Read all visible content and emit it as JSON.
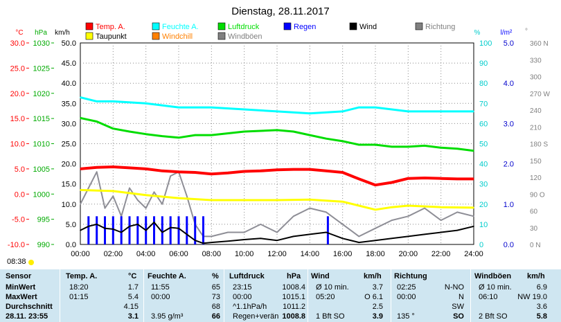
{
  "title": "Dienstag, 28.11.2017",
  "legend": [
    {
      "label": "Temp. A.",
      "color": "#ff0000"
    },
    {
      "label": "Feuchte A.",
      "color": "#00ffff"
    },
    {
      "label": "Luftdruck",
      "color": "#00dd00"
    },
    {
      "label": "Regen",
      "color": "#0000ff"
    },
    {
      "label": "Wind",
      "color": "#000000"
    },
    {
      "label": "Richtung",
      "color": "#808080"
    },
    {
      "label": "Taupunkt",
      "color": "#ffff00"
    },
    {
      "label": "Windchill",
      "color": "#ff8000"
    },
    {
      "label": "Windböen",
      "color": "#808080"
    }
  ],
  "axes": {
    "unit_temp": "°C",
    "unit_press": "hPa",
    "unit_wind": "km/h",
    "unit_hum": "%",
    "unit_rain": "l/m²",
    "unit_dir": "°",
    "temp_ticks": [
      "30.0",
      "25.0",
      "20.0",
      "15.0",
      "10.0",
      "5.0",
      "0.0",
      "-5.0",
      "-10.0"
    ],
    "press_ticks": [
      "1030",
      "1025",
      "1020",
      "1015",
      "1010",
      "1005",
      "1000",
      "995",
      "990"
    ],
    "wind_ticks": [
      "50.0",
      "45.0",
      "40.0",
      "35.0",
      "30.0",
      "25.0",
      "20.0",
      "15.0",
      "10.0",
      "5.0",
      "0.0"
    ],
    "hum_ticks": [
      "100",
      "90",
      "80",
      "70",
      "60",
      "50",
      "40",
      "30",
      "20",
      "10",
      "0"
    ],
    "rain_ticks": [
      "5.0",
      "4.0",
      "3.0",
      "2.0",
      "1.0",
      "0.0"
    ],
    "dir_ticks": [
      "360 N",
      "330",
      "300",
      "270 W",
      "240",
      "210",
      "180 S",
      "150",
      "120",
      "90 O",
      "60",
      "30",
      "0 N"
    ],
    "time_ticks": [
      "00:00",
      "02:00",
      "04:00",
      "06:00",
      "08:00",
      "10:00",
      "12:00",
      "14:00",
      "16:00",
      "18:00",
      "20:00",
      "22:00",
      "24:00"
    ]
  },
  "footer": {
    "sunrise": "08:38"
  },
  "chart_data": {
    "type": "line",
    "title": "Dienstag, 28.11.2017",
    "x_unit": "hours",
    "xlim": [
      0,
      24
    ],
    "series": [
      {
        "name": "Temp. A.",
        "axis": "°C",
        "ylim": [
          -10,
          30
        ],
        "color": "#ff0000",
        "x": [
          0,
          1,
          2,
          3,
          4,
          5,
          6,
          7,
          8,
          9,
          10,
          11,
          12,
          13,
          14,
          15,
          16,
          17,
          18,
          19,
          20,
          21,
          22,
          23,
          24
        ],
        "y": [
          5.0,
          5.3,
          5.4,
          5.2,
          5.0,
          4.6,
          4.4,
          4.3,
          4.0,
          4.2,
          4.5,
          4.6,
          4.8,
          4.9,
          4.9,
          4.6,
          4.3,
          3.0,
          1.8,
          2.3,
          3.1,
          3.2,
          3.1,
          3.0,
          3.0
        ]
      },
      {
        "name": "Taupunkt",
        "axis": "°C",
        "ylim": [
          -10,
          30
        ],
        "color": "#ffff00",
        "x": [
          0,
          2,
          4,
          6,
          8,
          10,
          12,
          14,
          16,
          17,
          18,
          19,
          20,
          22,
          24
        ],
        "y": [
          0.8,
          0.6,
          -0.2,
          -0.8,
          -1.2,
          -1.2,
          -1.2,
          -1.1,
          -1.5,
          -2.3,
          -3.1,
          -2.6,
          -2.3,
          -2.6,
          -2.7
        ]
      },
      {
        "name": "Luftdruck",
        "axis": "hPa",
        "ylim": [
          990,
          1030
        ],
        "color": "#00dd00",
        "x": [
          0,
          1,
          2,
          3,
          4,
          5,
          6,
          7,
          8,
          10,
          12,
          13,
          14,
          15,
          16,
          17,
          18,
          19,
          20,
          21,
          22,
          23,
          24
        ],
        "y": [
          1015.1,
          1014.4,
          1013.0,
          1012.4,
          1011.9,
          1011.5,
          1011.2,
          1011.7,
          1011.7,
          1012.4,
          1012.7,
          1012.4,
          1011.7,
          1011.0,
          1010.5,
          1009.8,
          1009.8,
          1009.4,
          1009.4,
          1009.6,
          1009.2,
          1009.0,
          1008.6
        ]
      },
      {
        "name": "Feuchte A.",
        "axis": "%",
        "ylim": [
          0,
          100
        ],
        "color": "#00ffff",
        "x": [
          0,
          1,
          2,
          4,
          6,
          8,
          10,
          12,
          14,
          16,
          17,
          18,
          19,
          20,
          22,
          24
        ],
        "y": [
          73,
          71,
          71,
          70,
          68,
          68,
          67,
          66,
          65,
          66,
          68,
          68,
          67,
          66,
          66,
          66
        ]
      },
      {
        "name": "Wind",
        "axis": "km/h",
        "ylim": [
          0,
          50
        ],
        "color": "#000000",
        "x": [
          0,
          0.5,
          1,
          1.5,
          2,
          2.5,
          3,
          3.5,
          4,
          4.5,
          5,
          5.5,
          6,
          6.5,
          7,
          7.5,
          8,
          9,
          10,
          11,
          12,
          13,
          14,
          15,
          16,
          17,
          18,
          19,
          20,
          21,
          22,
          23,
          24
        ],
        "y": [
          3.5,
          4.5,
          5.0,
          4.0,
          3.8,
          3.0,
          4.5,
          5.0,
          3.5,
          5.5,
          3.0,
          4.2,
          4.0,
          2.5,
          1.0,
          0.3,
          0.5,
          0.8,
          1.2,
          1.5,
          1.0,
          2.0,
          2.5,
          3.0,
          1.5,
          0.5,
          1.0,
          1.5,
          2.0,
          2.5,
          3.0,
          3.5,
          4.5
        ]
      },
      {
        "name": "Windböen",
        "axis": "km/h",
        "ylim": [
          0,
          50
        ],
        "color": "#8e8e96",
        "x": [
          0,
          0.5,
          1,
          1.5,
          2,
          2.5,
          3,
          3.5,
          4,
          4.5,
          5,
          5.5,
          6,
          6.5,
          7,
          7.5,
          8,
          9,
          10,
          11,
          12,
          13,
          14,
          15,
          16,
          17,
          18,
          19,
          20,
          21,
          22,
          23,
          24
        ],
        "y": [
          10,
          14,
          18,
          9,
          12,
          7,
          14,
          11,
          9,
          13,
          10,
          17,
          18,
          12,
          5,
          2,
          2,
          3,
          3,
          5,
          3,
          7,
          9,
          8,
          5,
          2,
          4,
          6,
          7,
          9,
          6,
          8,
          7
        ]
      },
      {
        "name": "Regen",
        "axis": "l/m²",
        "ylim": [
          0,
          5
        ],
        "color": "#0000ff",
        "type": "bar",
        "x": [
          0.5,
          1,
          1.5,
          2,
          2.5,
          3,
          3.5,
          4,
          4.5,
          5,
          5.5,
          6,
          6.5,
          7,
          7.5,
          15.1
        ],
        "y": [
          0.7,
          0.7,
          0.7,
          0.7,
          0.7,
          0.7,
          0.7,
          0.7,
          0.7,
          0.7,
          0.7,
          0.7,
          0.7,
          0.7,
          0.7,
          0.7
        ]
      }
    ]
  },
  "stats": {
    "headers": {
      "sensor": "Sensor",
      "temp": "Temp. A.",
      "temp_unit": "°C",
      "hum": "Feuchte A.",
      "hum_unit": "%",
      "press": "Luftdruck",
      "press_unit": "hPa",
      "wind": "Wind",
      "wind_unit": "km/h",
      "dir": "Richtung",
      "gust": "Windböen",
      "gust_unit": "km/h"
    },
    "rows": [
      {
        "label": "MinWert",
        "temp_t": "18:20",
        "temp_v": "1.7",
        "hum_t": "11:55",
        "hum_v": "65",
        "press_t": "23:15",
        "press_v": "1008.4",
        "wind_t": "Ø 10 min.",
        "wind_v": "3.7",
        "dir_t": "02:25",
        "dir_v": "N-NO",
        "gust_t": "Ø 10 min.",
        "gust_v": "6.9"
      },
      {
        "label": "MaxWert",
        "temp_t": "01:15",
        "temp_v": "5.4",
        "hum_t": "00:00",
        "hum_v": "73",
        "press_t": "00:00",
        "press_v": "1015.1",
        "wind_t": "05:20",
        "wind_v": "O 6.1",
        "dir_t": "00:00",
        "dir_v": "N",
        "gust_t": "06:10",
        "gust_v": "NW 19.0"
      },
      {
        "label": "Durchschnitt",
        "temp_t": "",
        "temp_v": "4.15",
        "hum_t": "",
        "hum_v": "68",
        "press_t": "^1.1hPa/h",
        "press_v": "1011.2",
        "wind_t": "",
        "wind_v": "2.5",
        "dir_t": "",
        "dir_v": "SW",
        "gust_t": "",
        "gust_v": "3.6"
      },
      {
        "label": "28.11. 23:55",
        "temp_t": "",
        "temp_v": "3.1",
        "hum_t": "3.95 g/m³",
        "hum_v": "66",
        "press_t": "Regen+verän",
        "press_v": "1008.8",
        "wind_t": "1 Bft SO",
        "wind_v": "3.9",
        "dir_t": "135 °",
        "dir_v": "SO",
        "gust_t": "2 Bft SO",
        "gust_v": "5.8"
      }
    ]
  }
}
